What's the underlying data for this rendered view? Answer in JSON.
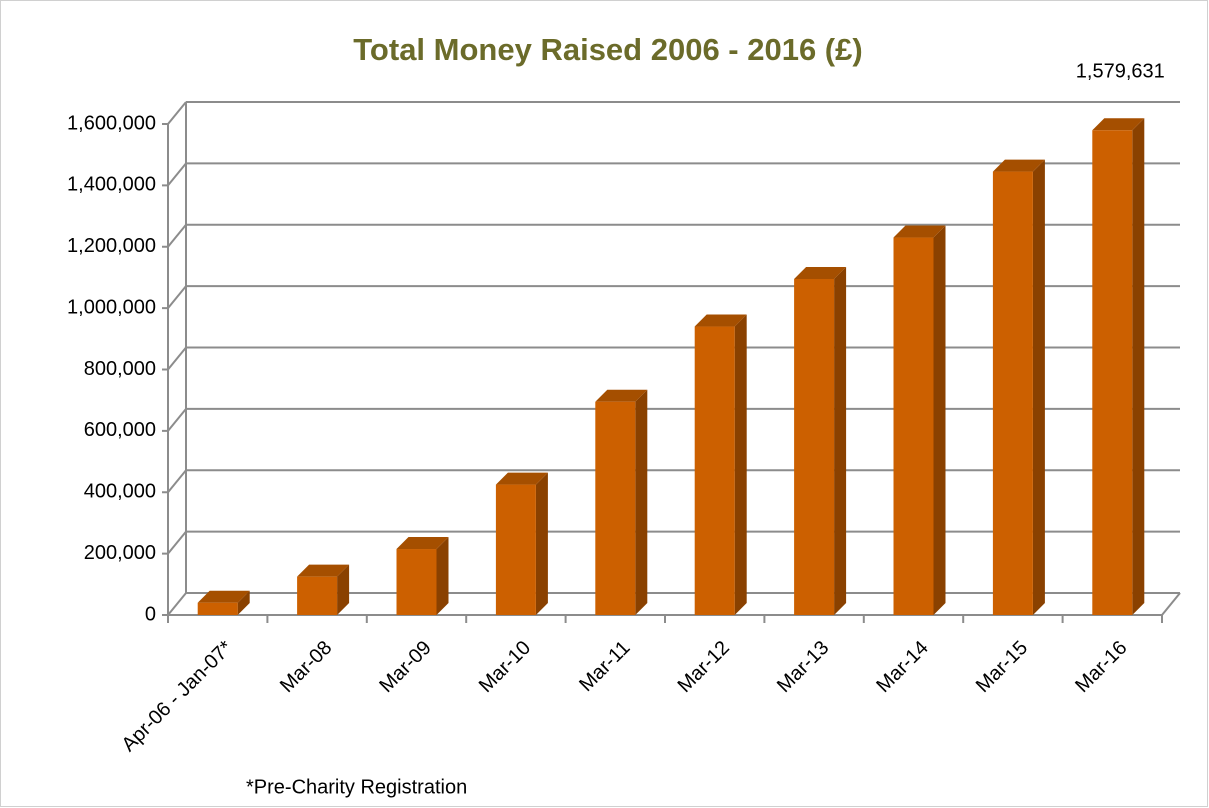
{
  "chart_data": {
    "type": "bar3d",
    "title": "Total Money Raised 2006 - 2016 (£)",
    "footnote": "*Pre-Charity Registration",
    "categories": [
      "Apr-06 - Jan-07*",
      "Mar-08",
      "Mar-09",
      "Mar-10",
      "Mar-11",
      "Mar-12",
      "Mar-13",
      "Mar-14",
      "Mar-15",
      "Mar-16"
    ],
    "values": [
      40000,
      125000,
      215000,
      425000,
      695000,
      940000,
      1095000,
      1230000,
      1445000,
      1579631
    ],
    "value_labels": [
      null,
      null,
      null,
      null,
      null,
      null,
      null,
      null,
      null,
      "1,579,631"
    ],
    "color": "#cc6000",
    "ylim": [
      0,
      1600000
    ],
    "yticks": [
      0,
      {
        "value": 200000,
        "label": "200,000"
      },
      {
        "value": 400000,
        "label": "400,000"
      },
      {
        "value": 600000,
        "label": "600,000"
      },
      {
        "value": 800000,
        "label": "800,000"
      },
      {
        "value": 1000000,
        "label": "1,000,000"
      },
      {
        "value": 1200000,
        "label": "1,200,000"
      },
      {
        "value": 1400000,
        "label": "1,400,000"
      },
      {
        "value": 1600000,
        "label": "1,600,000"
      }
    ],
    "grid": true
  }
}
